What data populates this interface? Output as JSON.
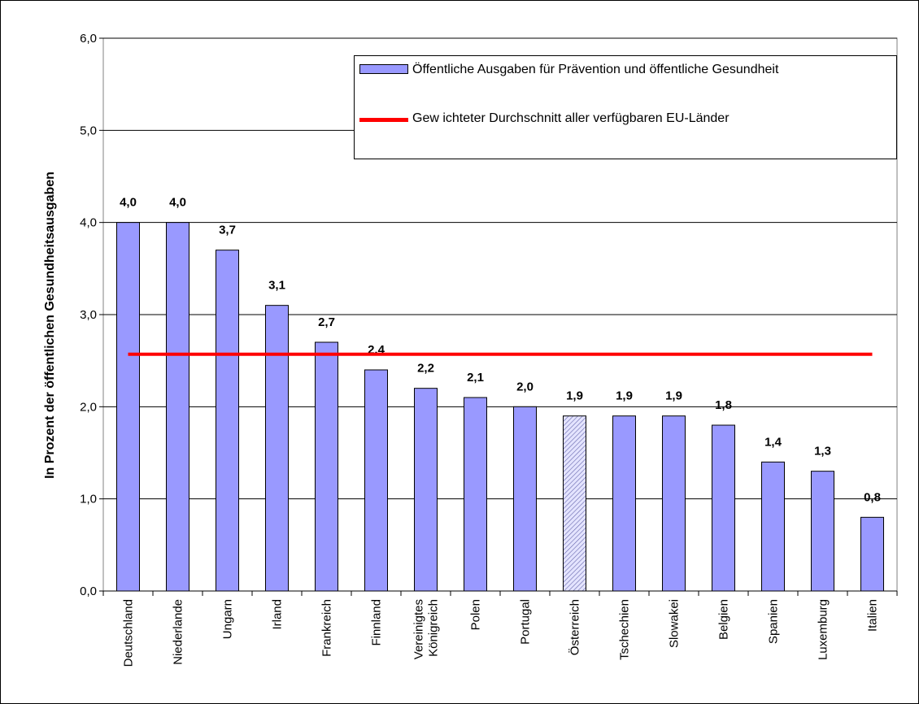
{
  "chart_data": {
    "type": "bar",
    "y_label": "In Prozent der öffentlichen Gesundheitsausgaben",
    "categories": [
      "Deutschland",
      "Niederlande",
      "Ungarn",
      "Irland",
      "Frankreich",
      "Finnland",
      "Vereinigtes Königreich",
      "Polen",
      "Portugal",
      "Österreich",
      "Tschechien",
      "Slowakei",
      "Belgien",
      "Spanien",
      "Luxemburg",
      "Italien"
    ],
    "series": [
      {
        "name": "Öffentliche Ausgaben für Prävention und öffentliche Gesundheit",
        "type": "bar",
        "color": "#9999ff",
        "values": [
          4.0,
          4.0,
          3.7,
          3.1,
          2.7,
          2.4,
          2.2,
          2.1,
          2.0,
          1.9,
          1.9,
          1.9,
          1.8,
          1.4,
          1.3,
          0.8
        ],
        "value_labels": [
          "4,0",
          "4,0",
          "3,7",
          "3,1",
          "2,7",
          "2,4",
          "2,2",
          "2,1",
          "2,0",
          "1,9",
          "1,9",
          "1,9",
          "1,8",
          "1,4",
          "1,3",
          "0,8"
        ],
        "hatched": [
          9
        ]
      },
      {
        "name": "Gew ichteter Durchschnitt aller verfügbaren EU-Länder",
        "type": "line",
        "color": "#ff0000",
        "values": [
          2.57,
          2.57,
          2.57,
          2.57,
          2.57,
          2.57,
          2.57,
          2.57,
          2.57,
          2.57,
          2.57,
          2.57,
          2.57,
          2.57,
          2.57,
          2.57
        ]
      }
    ],
    "ylim": [
      0,
      6
    ],
    "yticks": [
      {
        "value": 0,
        "label": "0,0"
      },
      {
        "value": 1,
        "label": "1,0"
      },
      {
        "value": 2,
        "label": "2,0"
      },
      {
        "value": 3,
        "label": "3,0"
      },
      {
        "value": 4,
        "label": "4,0"
      },
      {
        "value": 5,
        "label": "5,0"
      },
      {
        "value": 6,
        "label": "6,0"
      }
    ],
    "grid": true
  }
}
